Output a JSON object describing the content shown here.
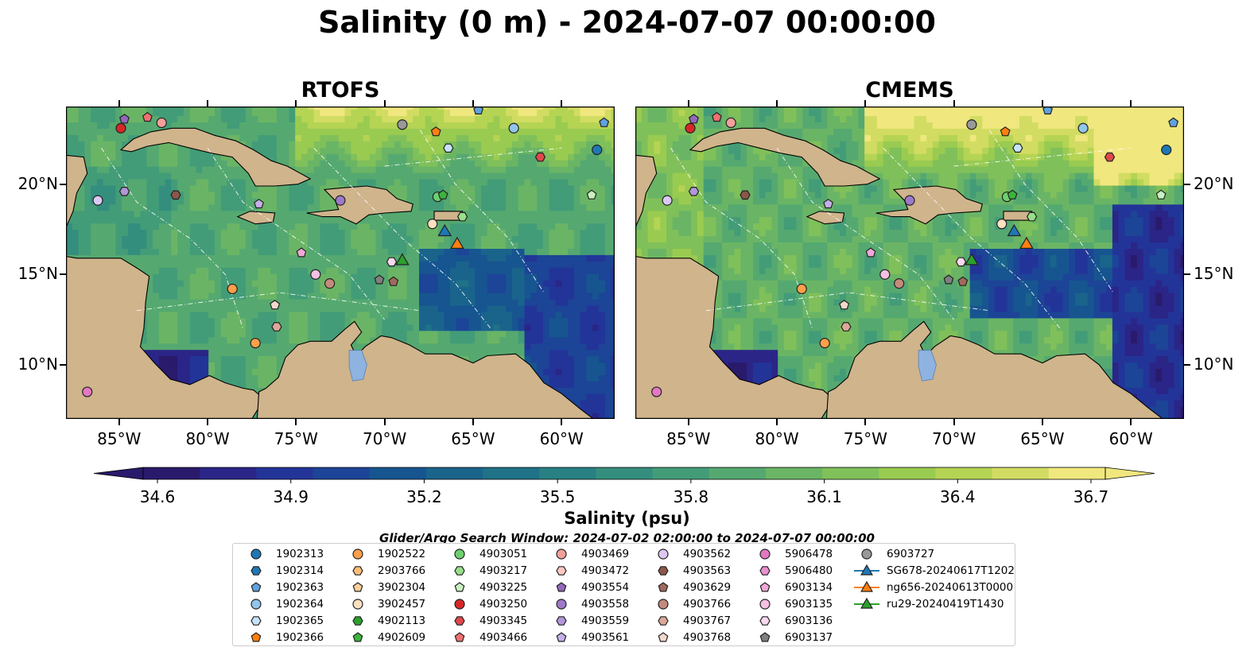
{
  "title": "Salinity (0 m) - 2024-07-07 00:00:00",
  "panels": [
    {
      "id": "rtofs",
      "title": "RTOFS"
    },
    {
      "id": "cmems",
      "title": "CMEMS"
    }
  ],
  "map": {
    "projection": "PlateCarree",
    "lon_range": [
      -88,
      -57
    ],
    "lat_range": [
      7,
      24.3
    ],
    "lon_ticks": [
      {
        "value": -85,
        "label": "85°W"
      },
      {
        "value": -80,
        "label": "80°W"
      },
      {
        "value": -75,
        "label": "75°W"
      },
      {
        "value": -70,
        "label": "70°W"
      },
      {
        "value": -65,
        "label": "65°W"
      },
      {
        "value": -60,
        "label": "60°W"
      }
    ],
    "lat_ticks": [
      {
        "value": 20,
        "label": "20°N"
      },
      {
        "value": 15,
        "label": "15°N"
      },
      {
        "value": 10,
        "label": "10°N"
      }
    ],
    "land_color": "#cfb48c",
    "lake_color": "#8fb3e0"
  },
  "colorbar": {
    "label": "Salinity (psu)",
    "min": 34.6,
    "max": 36.7,
    "ticks": [
      "34.6",
      "34.9",
      "35.2",
      "35.5",
      "35.8",
      "36.1",
      "36.4",
      "36.7"
    ],
    "colormap": "haline",
    "colors": [
      "#2a1a6c",
      "#2a2587",
      "#233498",
      "#1c4497",
      "#175590",
      "#1a648c",
      "#1f7287",
      "#288083",
      "#348e7e",
      "#439c78",
      "#55a970",
      "#6ab565",
      "#80c05a",
      "#9acb51",
      "#b5d454",
      "#d2dc63",
      "#f0e77e"
    ]
  },
  "search_window": "Glider/Argo Search Window: 2024-07-02 02:00:00 to 2024-07-07 00:00:00",
  "legend": [
    {
      "label": "1902313",
      "marker": "circle",
      "color": "#1f77b4"
    },
    {
      "label": "1902314",
      "marker": "hexagon",
      "color": "#1f77b4"
    },
    {
      "label": "1902363",
      "marker": "pentagon",
      "color": "#5fa2dd"
    },
    {
      "label": "1902364",
      "marker": "circle",
      "color": "#92c5ea"
    },
    {
      "label": "1902365",
      "marker": "hexagon",
      "color": "#c6e4f7"
    },
    {
      "label": "1902366",
      "marker": "pentagon",
      "color": "#ff7f0e"
    },
    {
      "label": "1902522",
      "marker": "circle",
      "color": "#ff9f4a"
    },
    {
      "label": "2903766",
      "marker": "hexagon",
      "color": "#ffbb78"
    },
    {
      "label": "3902304",
      "marker": "pentagon",
      "color": "#ffcf99"
    },
    {
      "label": "3902457",
      "marker": "circle",
      "color": "#ffe0c0"
    },
    {
      "label": "4902113",
      "marker": "hexagon",
      "color": "#2ca02c"
    },
    {
      "label": "4902609",
      "marker": "pentagon",
      "color": "#3cb43c"
    },
    {
      "label": "4903051",
      "marker": "circle",
      "color": "#6fcf6f"
    },
    {
      "label": "4903217",
      "marker": "hexagon",
      "color": "#98df8a"
    },
    {
      "label": "4903225",
      "marker": "pentagon",
      "color": "#c8f0c0"
    },
    {
      "label": "4903250",
      "marker": "circle",
      "color": "#d62728"
    },
    {
      "label": "4903345",
      "marker": "hexagon",
      "color": "#e0474a"
    },
    {
      "label": "4903466",
      "marker": "pentagon",
      "color": "#f07070"
    },
    {
      "label": "4903469",
      "marker": "circle",
      "color": "#f4a09a"
    },
    {
      "label": "4903472",
      "marker": "hexagon",
      "color": "#fcc8c0"
    },
    {
      "label": "4903554",
      "marker": "pentagon",
      "color": "#9467bd"
    },
    {
      "label": "4903558",
      "marker": "circle",
      "color": "#9e79c9"
    },
    {
      "label": "4903559",
      "marker": "hexagon",
      "color": "#b197d8"
    },
    {
      "label": "4903561",
      "marker": "pentagon",
      "color": "#c5b0e8"
    },
    {
      "label": "4903562",
      "marker": "circle",
      "color": "#dcc8f2"
    },
    {
      "label": "4903563",
      "marker": "hexagon",
      "color": "#8c564b"
    },
    {
      "label": "4903629",
      "marker": "pentagon",
      "color": "#a06a5e"
    },
    {
      "label": "4903766",
      "marker": "circle",
      "color": "#c48a7c"
    },
    {
      "label": "4903767",
      "marker": "hexagon",
      "color": "#dba898"
    },
    {
      "label": "4903768",
      "marker": "pentagon",
      "color": "#f5d8cc"
    },
    {
      "label": "5906478",
      "marker": "circle",
      "color": "#e377c2"
    },
    {
      "label": "5906480",
      "marker": "hexagon",
      "color": "#ea8fce"
    },
    {
      "label": "6903134",
      "marker": "pentagon",
      "color": "#f0a8d8"
    },
    {
      "label": "6903135",
      "marker": "circle",
      "color": "#f6c0e2"
    },
    {
      "label": "6903136",
      "marker": "hexagon",
      "color": "#fad8ee"
    },
    {
      "label": "6903137",
      "marker": "pentagon",
      "color": "#7f7f7f"
    },
    {
      "label": "6903727",
      "marker": "circle",
      "color": "#999999"
    },
    {
      "label": "SG678-20240617T1202",
      "marker": "triangle-line",
      "color": "#1f77b4"
    },
    {
      "label": "ng656-20240613T0000",
      "marker": "triangle-line",
      "color": "#ff7f0e"
    },
    {
      "label": "ru29-20240419T1430",
      "marker": "triangle-line",
      "color": "#2ca02c"
    }
  ],
  "observations": [
    {
      "id": "1902313",
      "lon": -58.0,
      "lat": 21.9
    },
    {
      "id": "1902363",
      "lon": -64.7,
      "lat": 24.1
    },
    {
      "id": "1902363",
      "lon": -57.6,
      "lat": 23.4
    },
    {
      "id": "1902364",
      "lon": -62.7,
      "lat": 23.1
    },
    {
      "id": "1902365",
      "lon": -66.4,
      "lat": 22.0
    },
    {
      "id": "1902366",
      "lon": -67.1,
      "lat": 22.9
    },
    {
      "id": "6903727",
      "lon": -69.0,
      "lat": 23.3
    },
    {
      "id": "4903345",
      "lon": -61.2,
      "lat": 21.5
    },
    {
      "id": "4903225",
      "lon": -58.3,
      "lat": 19.4
    },
    {
      "id": "4903250",
      "lon": -84.9,
      "lat": 23.1
    },
    {
      "id": "4903554",
      "lon": -84.7,
      "lat": 23.6
    },
    {
      "id": "4903466",
      "lon": -83.4,
      "lat": 23.7
    },
    {
      "id": "4903469",
      "lon": -82.6,
      "lat": 23.4
    },
    {
      "id": "4903562",
      "lon": -86.2,
      "lat": 19.1
    },
    {
      "id": "4903559",
      "lon": -84.7,
      "lat": 19.6
    },
    {
      "id": "4903563",
      "lon": -81.8,
      "lat": 19.4
    },
    {
      "id": "4903561",
      "lon": -77.1,
      "lat": 18.9
    },
    {
      "id": "4903558",
      "lon": -72.5,
      "lat": 19.1
    },
    {
      "id": "4903051",
      "lon": -67.0,
      "lat": 19.3
    },
    {
      "id": "4902609",
      "lon": -66.7,
      "lat": 19.4
    },
    {
      "id": "4903217",
      "lon": -65.6,
      "lat": 18.2
    },
    {
      "id": "3902457",
      "lon": -67.3,
      "lat": 17.8
    },
    {
      "id": "6903134",
      "lon": -74.7,
      "lat": 16.2
    },
    {
      "id": "6903135",
      "lon": -73.9,
      "lat": 15.0
    },
    {
      "id": "4903766",
      "lon": -73.1,
      "lat": 14.5
    },
    {
      "id": "6903136",
      "lon": -69.6,
      "lat": 15.7
    },
    {
      "id": "6903137",
      "lon": -70.3,
      "lat": 14.7
    },
    {
      "id": "4903629",
      "lon": -69.5,
      "lat": 14.6
    },
    {
      "id": "1902522",
      "lon": -78.6,
      "lat": 14.2
    },
    {
      "id": "4903768",
      "lon": -76.2,
      "lat": 13.3
    },
    {
      "id": "4903767",
      "lon": -76.1,
      "lat": 12.1
    },
    {
      "id": "1902522",
      "lon": -77.3,
      "lat": 11.2
    },
    {
      "id": "5906478",
      "lon": -86.8,
      "lat": 8.5
    }
  ],
  "gliders": [
    {
      "id": "SG678-20240617T1202",
      "lon": -66.6,
      "lat": 17.3
    },
    {
      "id": "ng656-20240613T0000",
      "lon": -65.9,
      "lat": 16.6
    },
    {
      "id": "ru29-20240419T1430",
      "lon": -69.0,
      "lat": 15.7
    }
  ]
}
